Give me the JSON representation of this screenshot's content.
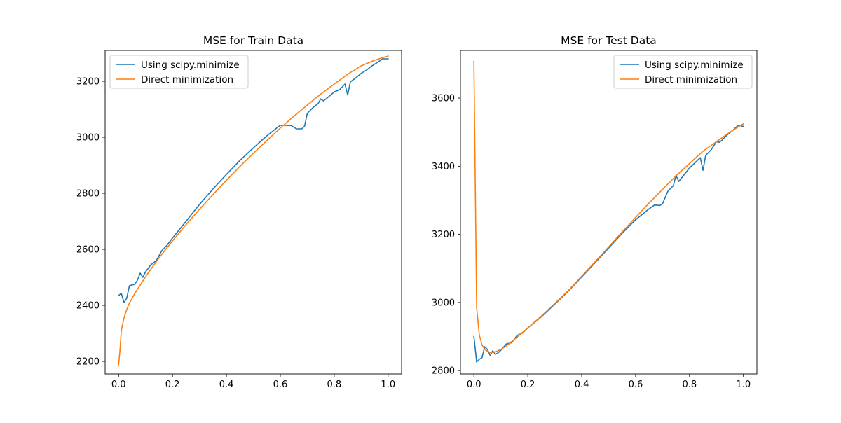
{
  "chart_data": [
    {
      "type": "line",
      "title": "MSE for Train Data",
      "xlabel": "",
      "ylabel": "",
      "xlim": [
        -0.05,
        1.05
      ],
      "ylim": [
        2155,
        3310
      ],
      "xticks": [
        0.0,
        0.2,
        0.4,
        0.6,
        0.8,
        1.0
      ],
      "xtick_labels": [
        "0.0",
        "0.2",
        "0.4",
        "0.6",
        "0.8",
        "1.0"
      ],
      "yticks": [
        2200,
        2400,
        2600,
        2800,
        3000,
        3200
      ],
      "ytick_labels": [
        "2200",
        "2400",
        "2600",
        "2800",
        "3000",
        "3200"
      ],
      "grid": false,
      "legend_position": "top-left",
      "series": [
        {
          "name": "Using scipy.minimize",
          "color": "#1f77b4",
          "x": [
            0.0,
            0.01,
            0.02,
            0.03,
            0.04,
            0.05,
            0.06,
            0.07,
            0.08,
            0.09,
            0.1,
            0.12,
            0.14,
            0.16,
            0.18,
            0.2,
            0.25,
            0.3,
            0.35,
            0.4,
            0.45,
            0.5,
            0.55,
            0.6,
            0.64,
            0.66,
            0.68,
            0.69,
            0.7,
            0.72,
            0.74,
            0.75,
            0.76,
            0.78,
            0.8,
            0.82,
            0.84,
            0.85,
            0.86,
            0.88,
            0.9,
            0.92,
            0.94,
            0.96,
            0.98,
            1.0
          ],
          "y": [
            2435,
            2443,
            2410,
            2425,
            2470,
            2473,
            2475,
            2490,
            2515,
            2500,
            2520,
            2545,
            2560,
            2595,
            2615,
            2640,
            2700,
            2760,
            2815,
            2867,
            2917,
            2962,
            3005,
            3043,
            3042,
            3030,
            3030,
            3040,
            3085,
            3105,
            3120,
            3137,
            3130,
            3145,
            3162,
            3170,
            3190,
            3151,
            3198,
            3212,
            3228,
            3240,
            3255,
            3267,
            3280,
            3280
          ]
        },
        {
          "name": "Direct minimization",
          "color": "#ff7f0e",
          "x": [
            0.0,
            0.005,
            0.01,
            0.02,
            0.03,
            0.04,
            0.05,
            0.06,
            0.07,
            0.08,
            0.1,
            0.12,
            0.14,
            0.16,
            0.18,
            0.2,
            0.25,
            0.3,
            0.35,
            0.4,
            0.45,
            0.5,
            0.55,
            0.6,
            0.65,
            0.7,
            0.75,
            0.8,
            0.85,
            0.9,
            0.95,
            1.0
          ],
          "y": [
            2187,
            2240,
            2310,
            2355,
            2385,
            2408,
            2425,
            2442,
            2458,
            2472,
            2502,
            2530,
            2556,
            2582,
            2606,
            2630,
            2688,
            2743,
            2795,
            2846,
            2896,
            2943,
            2988,
            3033,
            3075,
            3115,
            3154,
            3190,
            3225,
            3255,
            3275,
            3290
          ]
        }
      ]
    },
    {
      "type": "line",
      "title": "MSE for Test Data",
      "xlabel": "",
      "ylabel": "",
      "xlim": [
        -0.05,
        1.05
      ],
      "ylim": [
        2790,
        3740
      ],
      "xticks": [
        0.0,
        0.2,
        0.4,
        0.6,
        0.8,
        1.0
      ],
      "xtick_labels": [
        "0.0",
        "0.2",
        "0.4",
        "0.6",
        "0.8",
        "1.0"
      ],
      "yticks": [
        2800,
        3000,
        3200,
        3400,
        3600
      ],
      "ytick_labels": [
        "2800",
        "3000",
        "3200",
        "3400",
        "3600"
      ],
      "grid": false,
      "legend_position": "top-right",
      "series": [
        {
          "name": "Using scipy.minimize",
          "color": "#1f77b4",
          "x": [
            0.0,
            0.01,
            0.02,
            0.03,
            0.04,
            0.05,
            0.06,
            0.07,
            0.08,
            0.09,
            0.1,
            0.12,
            0.14,
            0.16,
            0.18,
            0.2,
            0.25,
            0.3,
            0.35,
            0.4,
            0.45,
            0.5,
            0.55,
            0.6,
            0.65,
            0.67,
            0.69,
            0.7,
            0.72,
            0.74,
            0.75,
            0.76,
            0.78,
            0.8,
            0.82,
            0.84,
            0.85,
            0.86,
            0.88,
            0.9,
            0.91,
            0.92,
            0.94,
            0.96,
            0.98,
            1.0
          ],
          "y": [
            2900,
            2825,
            2833,
            2838,
            2870,
            2862,
            2845,
            2858,
            2848,
            2852,
            2860,
            2878,
            2882,
            2903,
            2910,
            2925,
            2958,
            2995,
            3033,
            3075,
            3117,
            3160,
            3203,
            3243,
            3275,
            3286,
            3285,
            3290,
            3327,
            3343,
            3373,
            3355,
            3375,
            3395,
            3410,
            3425,
            3388,
            3432,
            3448,
            3472,
            3470,
            3476,
            3492,
            3505,
            3520,
            3517
          ]
        },
        {
          "name": "Direct minimization",
          "color": "#ff7f0e",
          "x": [
            0.0,
            0.01,
            0.02,
            0.03,
            0.04,
            0.05,
            0.06,
            0.07,
            0.08,
            0.1,
            0.12,
            0.14,
            0.16,
            0.18,
            0.2,
            0.25,
            0.3,
            0.35,
            0.4,
            0.45,
            0.5,
            0.55,
            0.6,
            0.65,
            0.7,
            0.75,
            0.8,
            0.85,
            0.9,
            0.95,
            1.0
          ],
          "y": [
            3708,
            2985,
            2905,
            2875,
            2862,
            2856,
            2853,
            2853,
            2855,
            2862,
            2872,
            2885,
            2898,
            2912,
            2925,
            2960,
            2997,
            3035,
            3077,
            3120,
            3163,
            3207,
            3250,
            3292,
            3332,
            3372,
            3408,
            3444,
            3472,
            3500,
            3525
          ]
        }
      ]
    }
  ]
}
